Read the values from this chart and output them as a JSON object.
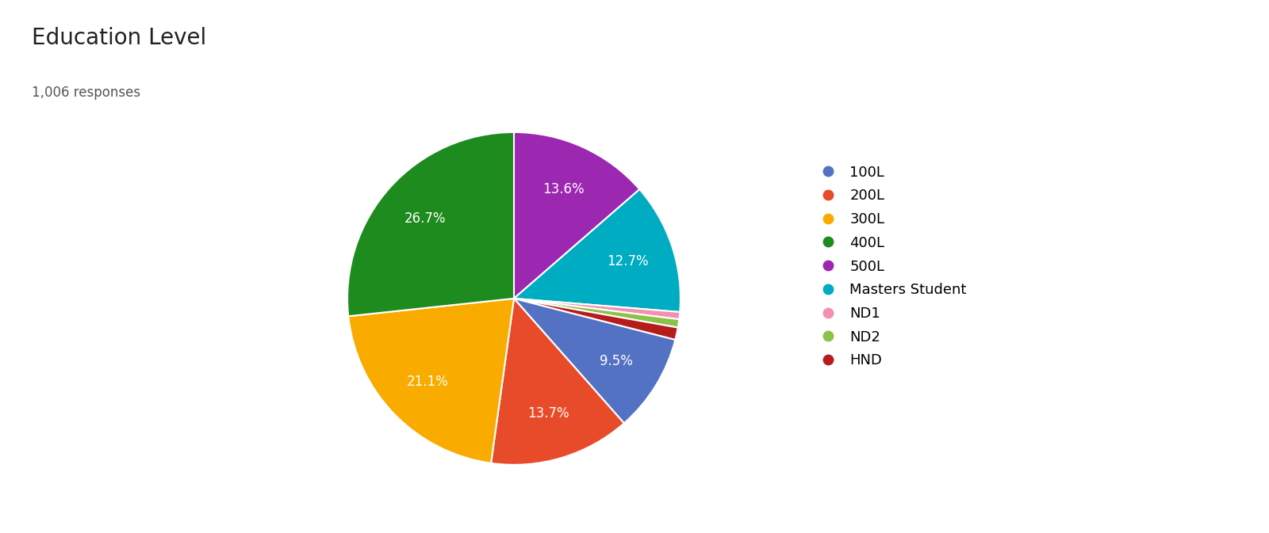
{
  "title": "Education Level",
  "subtitle": "1,006 responses",
  "labels": [
    "500L",
    "Masters Student",
    "ND1",
    "ND2",
    "HND",
    "100L",
    "200L",
    "300L",
    "400L"
  ],
  "legend_labels": [
    "100L",
    "200L",
    "300L",
    "400L",
    "500L",
    "Masters Student",
    "ND1",
    "ND2",
    "HND"
  ],
  "percentages": [
    13.6,
    12.7,
    0.7,
    0.8,
    1.2,
    9.5,
    13.7,
    21.1,
    26.7
  ],
  "colors": [
    "#9C27B0",
    "#00ACC1",
    "#F48FB1",
    "#8BC34A",
    "#B71C1C",
    "#5472C4",
    "#E84B2A",
    "#F9AB00",
    "#1E8B1E"
  ],
  "legend_colors": [
    "#5472C4",
    "#E84B2A",
    "#F9AB00",
    "#1E8B1E",
    "#9C27B0",
    "#00ACC1",
    "#F48FB1",
    "#8BC34A",
    "#B71C1C"
  ],
  "title_fontsize": 20,
  "subtitle_fontsize": 12,
  "label_fontsize": 12,
  "background_color": "#ffffff",
  "legend_fontsize": 13
}
